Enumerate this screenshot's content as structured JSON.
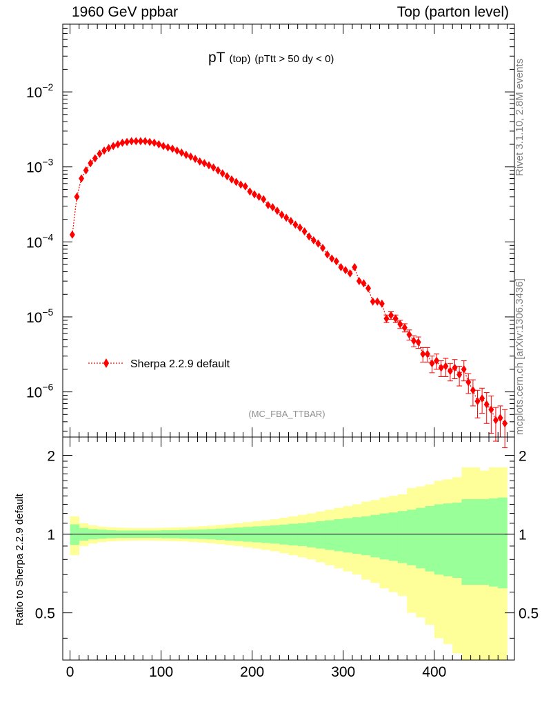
{
  "header": {
    "left": "1960 GeV ppbar",
    "right": "Top (parton level)"
  },
  "sidebar": {
    "rivet": "Rivet 3.1.10,  2.8M events",
    "mcplots": "mcplots.cern.ch [arXiv:1306.3436]"
  },
  "plot_title": {
    "main": "pT",
    "sub1": "(top)",
    "sub2": "(pTtt > 50 dy < 0)"
  },
  "watermark": "(MC_FBA_TTBAR)",
  "legend": {
    "label": "Sherpa 2.2.9 default"
  },
  "ratio_ylabel": "Ratio to Sherpa 2.2.9 default",
  "colors": {
    "mc": "#ff0000",
    "band_inner": "#99ff99",
    "band_outer": "#ffff99"
  },
  "chart_data": [
    {
      "type": "scatter",
      "title": "pT (top) (pTtt > 50 dy < 0)",
      "xlabel": "",
      "ylabel": "",
      "xlim": [
        -8,
        488
      ],
      "ylim": [
        2.5e-07,
        0.08
      ],
      "yscale": "log",
      "grid": false,
      "legend_position": "bottom-left",
      "y_ticks": [
        0.01,
        0.001,
        0.0001,
        1e-05,
        1e-06
      ],
      "y_tick_labels": [
        {
          "base": "10",
          "exp": "−2"
        },
        {
          "base": "10",
          "exp": "−3"
        },
        {
          "base": "10",
          "exp": "−4"
        },
        {
          "base": "10",
          "exp": "−5"
        },
        {
          "base": "10",
          "exp": "−6"
        }
      ],
      "series": [
        {
          "name": "Sherpa 2.2.9 default",
          "x": [
            2.5,
            7.5,
            12.5,
            17.5,
            22.5,
            27.5,
            32.5,
            37.5,
            42.5,
            47.5,
            52.5,
            57.5,
            62.5,
            67.5,
            72.5,
            77.5,
            82.5,
            87.5,
            92.5,
            97.5,
            102.5,
            107.5,
            112.5,
            117.5,
            122.5,
            127.5,
            132.5,
            137.5,
            142.5,
            147.5,
            152.5,
            157.5,
            162.5,
            167.5,
            172.5,
            177.5,
            182.5,
            187.5,
            192.5,
            197.5,
            202.5,
            207.5,
            212.5,
            217.5,
            222.5,
            227.5,
            232.5,
            237.5,
            242.5,
            247.5,
            252.5,
            257.5,
            262.5,
            267.5,
            272.5,
            277.5,
            282.5,
            287.5,
            292.5,
            297.5,
            302.5,
            307.5,
            312.5,
            317.5,
            322.5,
            327.5,
            332.5,
            337.5,
            342.5,
            347.5,
            352.5,
            357.5,
            362.5,
            367.5,
            372.5,
            377.5,
            382.5,
            387.5,
            392.5,
            397.5,
            402.5,
            407.5,
            412.5,
            417.5,
            422.5,
            427.5,
            432.5,
            437.5,
            442.5,
            447.5,
            452.5,
            457.5,
            462.5,
            467.5,
            472.5,
            477.5
          ],
          "y": [
            0.000125,
            0.0004,
            0.0007,
            0.0009,
            0.00112,
            0.0013,
            0.0015,
            0.00165,
            0.00178,
            0.0019,
            0.002,
            0.0021,
            0.00215,
            0.0022,
            0.0022,
            0.0022,
            0.0022,
            0.00215,
            0.0021,
            0.002,
            0.0019,
            0.00182,
            0.00175,
            0.00165,
            0.00155,
            0.00145,
            0.00137,
            0.00128,
            0.00118,
            0.00112,
            0.00105,
            0.00098,
            0.0009,
            0.00082,
            0.00075,
            0.00068,
            0.00063,
            0.00058,
            0.00055,
            0.00047,
            0.00043,
            0.0004,
            0.00037,
            0.00031,
            0.00029,
            0.00026,
            0.00023,
            0.00021,
            0.00019,
            0.00017,
            0.000155,
            0.000138,
            0.000118,
            0.000105,
            9.5e-05,
            8.3e-05,
            6.8e-05,
            6e-05,
            5.5e-05,
            4.6e-05,
            4.2e-05,
            3.8e-05,
            4.6e-05,
            3e-05,
            2.8e-05,
            2.4e-05,
            1.6e-05,
            1.6e-05,
            1.5e-05,
            9.5e-06,
            1.05e-05,
            9.5e-06,
            8e-06,
            7.2e-06,
            5.8e-06,
            4.8e-06,
            4.6e-06,
            3.2e-06,
            3.2e-06,
            2.4e-06,
            2.6e-06,
            2.1e-06,
            2.2e-06,
            1.9e-06,
            2.1e-06,
            1.7e-06,
            2e-06,
            1.35e-06,
            1.05e-06,
            7.5e-07,
            8.2e-07,
            6.8e-07,
            5.8e-07,
            4.2e-07,
            4.5e-07,
            3.8e-07
          ],
          "y_err": [
            6e-06,
            1.2e-05,
            1.5e-05,
            2e-05,
            2.5e-05,
            3e-05,
            3e-05,
            3e-05,
            3e-05,
            3e-05,
            3e-05,
            3e-05,
            3e-05,
            3e-05,
            3e-05,
            3e-05,
            3e-05,
            3e-05,
            3e-05,
            3e-05,
            3e-05,
            3e-05,
            3e-05,
            3e-05,
            3e-05,
            2.5e-05,
            2.5e-05,
            2.5e-05,
            2.2e-05,
            2e-05,
            2e-05,
            1.8e-05,
            1.8e-05,
            1.6e-05,
            1.5e-05,
            1.3e-05,
            1.2e-05,
            1.1e-05,
            1.1e-05,
            1e-05,
            9e-06,
            9e-06,
            8e-06,
            7e-06,
            7e-06,
            6e-06,
            6e-06,
            5e-06,
            5e-06,
            5e-06,
            4.5e-06,
            4e-06,
            3.8e-06,
            3.5e-06,
            3.3e-06,
            3e-06,
            2.8e-06,
            2.6e-06,
            2.5e-06,
            2.3e-06,
            2.2e-06,
            2e-06,
            2.5e-06,
            1.9e-06,
            1.8e-06,
            1.7e-06,
            1.4e-06,
            1.4e-06,
            1.4e-06,
            1.1e-06,
            1.2e-06,
            1.1e-06,
            1e-06,
            9e-07,
            9e-07,
            8e-07,
            8e-07,
            7e-07,
            7e-07,
            6e-07,
            6e-07,
            5e-07,
            6e-07,
            5e-07,
            6e-07,
            5e-07,
            6e-07,
            4e-07,
            4e-07,
            3e-07,
            3e-07,
            3e-07,
            3e-07,
            2e-07,
            2e-07,
            2e-07
          ]
        }
      ],
      "x_ticks": []
    },
    {
      "type": "area",
      "title": "",
      "xlabel": "",
      "ylabel": "Ratio to Sherpa 2.2.9 default",
      "xlim": [
        -8,
        488
      ],
      "ylim": [
        0.33,
        2.35
      ],
      "yscale": "log",
      "grid": false,
      "reference_line": 1.0,
      "x_ticks": [
        0,
        100,
        200,
        300,
        400
      ],
      "y_ticks": [
        0.5,
        1,
        2
      ],
      "y_tick_labels": [
        "0.5",
        "1",
        "2"
      ],
      "x_edges": [
        0,
        10,
        20,
        30,
        40,
        50,
        60,
        70,
        80,
        90,
        100,
        110,
        120,
        130,
        140,
        150,
        160,
        170,
        180,
        190,
        200,
        210,
        220,
        230,
        240,
        250,
        260,
        270,
        280,
        290,
        300,
        310,
        320,
        330,
        340,
        350,
        360,
        370,
        380,
        390,
        400,
        410,
        420,
        430,
        440,
        450,
        460,
        470,
        480
      ],
      "series": [
        {
          "name": "band_inner",
          "upper": [
            1.09,
            1.055,
            1.045,
            1.04,
            1.035,
            1.032,
            1.032,
            1.032,
            1.032,
            1.032,
            1.035,
            1.035,
            1.038,
            1.04,
            1.042,
            1.045,
            1.05,
            1.055,
            1.06,
            1.065,
            1.07,
            1.075,
            1.08,
            1.088,
            1.095,
            1.1,
            1.11,
            1.12,
            1.13,
            1.14,
            1.15,
            1.16,
            1.17,
            1.185,
            1.2,
            1.21,
            1.225,
            1.24,
            1.26,
            1.28,
            1.3,
            1.31,
            1.32,
            1.36,
            1.36,
            1.36,
            1.37,
            1.38
          ],
          "lower": [
            0.91,
            0.945,
            0.955,
            0.96,
            0.965,
            0.968,
            0.968,
            0.968,
            0.968,
            0.968,
            0.965,
            0.965,
            0.962,
            0.96,
            0.958,
            0.955,
            0.95,
            0.945,
            0.94,
            0.935,
            0.93,
            0.925,
            0.92,
            0.912,
            0.905,
            0.9,
            0.89,
            0.88,
            0.87,
            0.86,
            0.85,
            0.84,
            0.83,
            0.815,
            0.8,
            0.79,
            0.775,
            0.76,
            0.74,
            0.72,
            0.7,
            0.69,
            0.68,
            0.64,
            0.64,
            0.64,
            0.63,
            0.62
          ]
        },
        {
          "name": "band_outer",
          "upper": [
            1.17,
            1.1,
            1.08,
            1.068,
            1.062,
            1.058,
            1.056,
            1.055,
            1.055,
            1.056,
            1.058,
            1.06,
            1.063,
            1.067,
            1.072,
            1.078,
            1.085,
            1.092,
            1.1,
            1.11,
            1.12,
            1.13,
            1.14,
            1.155,
            1.17,
            1.185,
            1.2,
            1.22,
            1.24,
            1.26,
            1.28,
            1.3,
            1.33,
            1.35,
            1.38,
            1.4,
            1.42,
            1.5,
            1.52,
            1.55,
            1.6,
            1.62,
            1.65,
            1.8,
            1.8,
            1.75,
            1.8,
            1.8
          ],
          "lower": [
            0.83,
            0.9,
            0.92,
            0.932,
            0.938,
            0.942,
            0.944,
            0.945,
            0.945,
            0.944,
            0.942,
            0.94,
            0.937,
            0.933,
            0.928,
            0.922,
            0.915,
            0.908,
            0.9,
            0.89,
            0.88,
            0.87,
            0.86,
            0.845,
            0.83,
            0.815,
            0.8,
            0.78,
            0.76,
            0.74,
            0.72,
            0.7,
            0.67,
            0.65,
            0.62,
            0.6,
            0.58,
            0.5,
            0.48,
            0.45,
            0.4,
            0.38,
            0.35,
            0.2,
            0.2,
            0.25,
            0.2,
            0.2
          ]
        }
      ]
    }
  ]
}
